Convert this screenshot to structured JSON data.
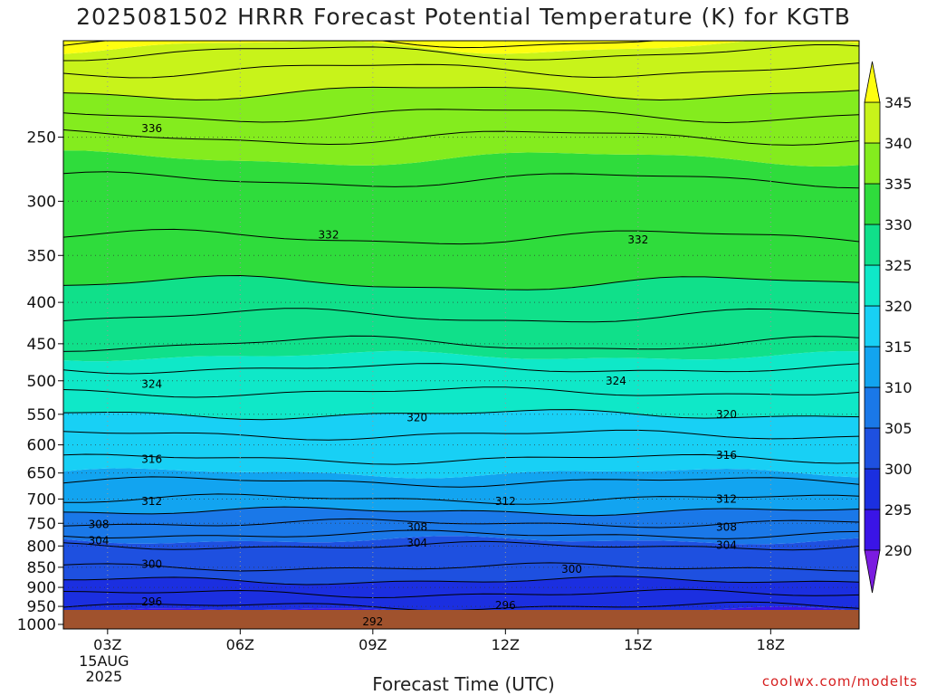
{
  "chart_data": {
    "type": "contour",
    "title": "2025081502 HRRR Forecast Potential Temperature (K) for KGTB",
    "xlabel": "Forecast Time (UTC)",
    "ylabel": "",
    "y_scale": "log",
    "y_reversed": true,
    "y_range": [
      190,
      1013
    ],
    "y_ticks": [
      250,
      300,
      350,
      400,
      450,
      500,
      550,
      600,
      650,
      700,
      750,
      800,
      850,
      900,
      950,
      1000
    ],
    "x_range_hours": [
      2,
      20
    ],
    "x_ticks": [
      {
        "hour": 3,
        "label": "03Z",
        "sub": [
          "15AUG",
          "2025"
        ]
      },
      {
        "hour": 6,
        "label": "06Z",
        "sub": []
      },
      {
        "hour": 9,
        "label": "09Z",
        "sub": []
      },
      {
        "hour": 12,
        "label": "12Z",
        "sub": []
      },
      {
        "hour": 15,
        "label": "15Z",
        "sub": []
      },
      {
        "hour": 18,
        "label": "18Z",
        "sub": []
      }
    ],
    "grid": true,
    "colorbar": {
      "levels": [
        290,
        295,
        300,
        305,
        310,
        315,
        320,
        325,
        330,
        335,
        340,
        345
      ],
      "colors": [
        "#7b1ce0",
        "#3a14e6",
        "#1b2fe0",
        "#1e50e0",
        "#1a78e8",
        "#12a4f0",
        "#18d0f5",
        "#0fe8c8",
        "#10e08a",
        "#2fdc3c",
        "#84ec1e",
        "#c8f31a",
        "#fefe10"
      ],
      "under_color": "#7b1ce0",
      "over_color": "#fefe10",
      "extend": "both"
    },
    "theta_profile": [
      {
        "p": 1000,
        "theta": 292
      },
      {
        "p": 975,
        "theta": 294
      },
      {
        "p": 950,
        "theta": 296
      },
      {
        "p": 900,
        "theta": 299
      },
      {
        "p": 850,
        "theta": 302
      },
      {
        "p": 800,
        "theta": 304
      },
      {
        "p": 750,
        "theta": 308
      },
      {
        "p": 700,
        "theta": 312
      },
      {
        "p": 650,
        "theta": 315
      },
      {
        "p": 600,
        "theta": 317
      },
      {
        "p": 550,
        "theta": 320
      },
      {
        "p": 500,
        "theta": 323
      },
      {
        "p": 450,
        "theta": 326
      },
      {
        "p": 400,
        "theta": 329
      },
      {
        "p": 350,
        "theta": 331.5
      },
      {
        "p": 300,
        "theta": 333
      },
      {
        "p": 250,
        "theta": 336
      },
      {
        "p": 220,
        "theta": 340
      },
      {
        "p": 200,
        "theta": 343
      },
      {
        "p": 190,
        "theta": 346
      }
    ],
    "contour_labels": [
      {
        "hour": 4.0,
        "p": 244,
        "text": "336"
      },
      {
        "hour": 8.0,
        "p": 330,
        "text": "332"
      },
      {
        "hour": 15.0,
        "p": 335,
        "text": "332"
      },
      {
        "hour": 4.0,
        "p": 505,
        "text": "324"
      },
      {
        "hour": 14.5,
        "p": 500,
        "text": "324"
      },
      {
        "hour": 10.0,
        "p": 555,
        "text": "320"
      },
      {
        "hour": 17.0,
        "p": 550,
        "text": "320"
      },
      {
        "hour": 4.0,
        "p": 625,
        "text": "316"
      },
      {
        "hour": 17.0,
        "p": 618,
        "text": "316"
      },
      {
        "hour": 4.0,
        "p": 705,
        "text": "312"
      },
      {
        "hour": 12.0,
        "p": 705,
        "text": "312"
      },
      {
        "hour": 17.0,
        "p": 700,
        "text": "312"
      },
      {
        "hour": 2.8,
        "p": 752,
        "text": "308"
      },
      {
        "hour": 10.0,
        "p": 758,
        "text": "308"
      },
      {
        "hour": 17.0,
        "p": 758,
        "text": "308"
      },
      {
        "hour": 2.8,
        "p": 788,
        "text": "304"
      },
      {
        "hour": 10.0,
        "p": 793,
        "text": "304"
      },
      {
        "hour": 17.0,
        "p": 798,
        "text": "304"
      },
      {
        "hour": 4.0,
        "p": 843,
        "text": "300"
      },
      {
        "hour": 13.5,
        "p": 855,
        "text": "300"
      },
      {
        "hour": 4.0,
        "p": 938,
        "text": "296"
      },
      {
        "hour": 12.0,
        "p": 948,
        "text": "296"
      },
      {
        "hour": 9.0,
        "p": 992,
        "text": "292"
      }
    ],
    "ground_color": "#a0522d",
    "credit": "coolwx.com/modelts"
  }
}
